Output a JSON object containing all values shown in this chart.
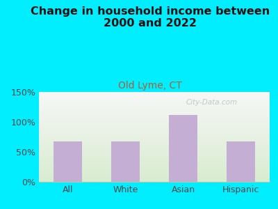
{
  "title": "Change in household income between\n2000 and 2022",
  "subtitle": "Old Lyme, CT",
  "categories": [
    "All",
    "White",
    "Asian",
    "Hispanic"
  ],
  "values": [
    68,
    68,
    112,
    68
  ],
  "bar_color": "#c4aed4",
  "title_fontsize": 11.5,
  "subtitle_fontsize": 10,
  "subtitle_color": "#b06030",
  "tick_label_fontsize": 9,
  "ylim": [
    0,
    150
  ],
  "yticks": [
    0,
    50,
    100,
    150
  ],
  "ytick_labels": [
    "0%",
    "50%",
    "100%",
    "150%"
  ],
  "bg_outer": "#00eeff",
  "watermark": "City-Data.com",
  "watermark_color": "#b0bab8",
  "title_color": "#111111"
}
